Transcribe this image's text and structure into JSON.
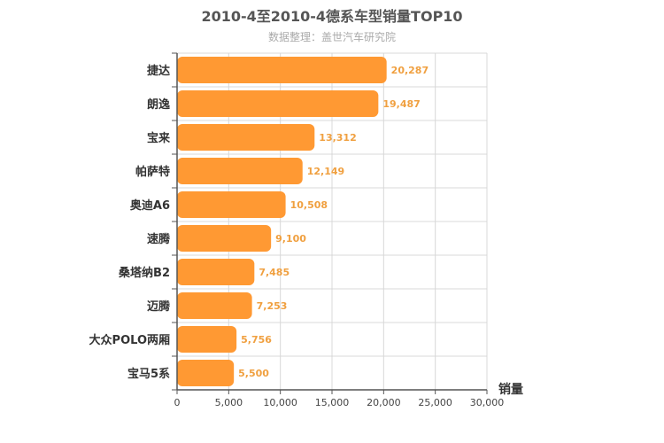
{
  "chart_data": {
    "type": "bar",
    "orientation": "horizontal",
    "title": "2010-4至2010-4德系车型销量TOP10",
    "subtitle": "数据整理：盖世汽车研究院",
    "categories": [
      "捷达",
      "朗逸",
      "宝来",
      "帕萨特",
      "奥迪A6",
      "速腾",
      "桑塔纳B2",
      "迈腾",
      "大众POLO两厢",
      "宝马5系"
    ],
    "values": [
      20287,
      19487,
      13312,
      12149,
      10508,
      9100,
      7485,
      7253,
      5756,
      5500
    ],
    "value_labels": [
      "20,287",
      "19,487",
      "13,312",
      "12,149",
      "10,508",
      "9,100",
      "7,485",
      "7,253",
      "5,756",
      "5,500"
    ],
    "xlabel": "销量",
    "ylabel": "",
    "xlim": [
      0,
      30000
    ],
    "ticks": [
      "0",
      "5,000",
      "10,000",
      "15,000",
      "20,000",
      "25,000",
      "30,000"
    ],
    "tick_values": [
      0,
      5000,
      10000,
      15000,
      20000,
      25000,
      30000
    ],
    "bar_color": "#ff9933",
    "label_color": "#f0a040",
    "grid": true
  }
}
